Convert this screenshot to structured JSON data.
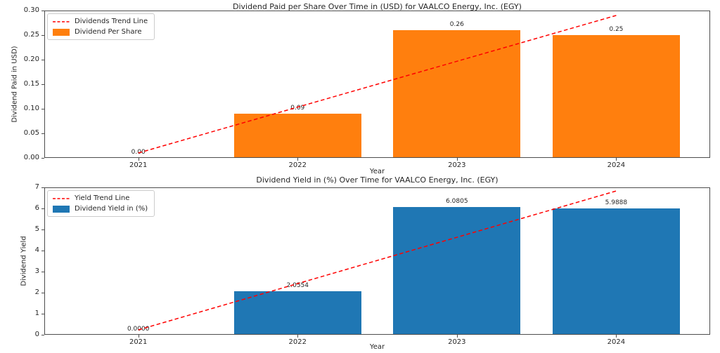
{
  "figure": {
    "background": "#ffffff",
    "text_color": "#262626",
    "spine_color": "#4d4d4d",
    "trend_color": "#ff0000"
  },
  "chart_data": [
    {
      "type": "bar",
      "title": "Dividend Paid per Share Over Time in (USD) for VAALCO Energy, Inc. (EGY)",
      "xlabel": "Year",
      "ylabel": "Dividend Paid in USD)",
      "categories": [
        "2021",
        "2022",
        "2023",
        "2024"
      ],
      "values": [
        0.0,
        0.09,
        0.26,
        0.25
      ],
      "bar_labels": [
        "0.00",
        "0.09",
        "0.26",
        "0.25"
      ],
      "bar_color": "#ff7f0e",
      "ylim": [
        0,
        0.3
      ],
      "ytick_values": [
        0,
        0.05,
        0.1,
        0.15,
        0.2,
        0.25,
        0.3
      ],
      "yticks": [
        "0.00",
        "0.05",
        "0.10",
        "0.15",
        "0.20",
        "0.25",
        "0.30"
      ],
      "grid": false,
      "legend_position": "upper-left",
      "trend_line": {
        "color": "#ff0000",
        "style": "dashed",
        "x_index": [
          0,
          3
        ],
        "y": [
          0.01,
          0.29
        ]
      },
      "legend": [
        {
          "label": "Dividends Trend Line",
          "swatch": "dashed-line",
          "color": "#ff0000"
        },
        {
          "label": "Dividend Per Share",
          "swatch": "rect",
          "color": "#ff7f0e"
        }
      ]
    },
    {
      "type": "bar",
      "title": "Dividend Yield in (%) Over Time for VAALCO Energy, Inc. (EGY)",
      "xlabel": "Year",
      "ylabel": "Dividend Yield",
      "categories": [
        "2021",
        "2022",
        "2023",
        "2024"
      ],
      "values": [
        0.0,
        2.0554,
        6.0805,
        5.9888
      ],
      "bar_labels": [
        "0.0000",
        "2.0554",
        "6.0805",
        "5.9888"
      ],
      "bar_color": "#1f77b4",
      "ylim": [
        0,
        7
      ],
      "ytick_values": [
        0,
        1,
        2,
        3,
        4,
        5,
        6,
        7
      ],
      "yticks": [
        "0",
        "1",
        "2",
        "3",
        "4",
        "5",
        "6",
        "7"
      ],
      "grid": false,
      "legend_position": "upper-left",
      "trend_line": {
        "color": "#ff0000",
        "style": "dashed",
        "x_index": [
          0,
          3
        ],
        "y": [
          0.23,
          6.83
        ]
      },
      "legend": [
        {
          "label": "Yield Trend Line",
          "swatch": "dashed-line",
          "color": "#ff0000"
        },
        {
          "label": "Dividend Yield in (%)",
          "swatch": "rect",
          "color": "#1f77b4"
        }
      ]
    }
  ]
}
